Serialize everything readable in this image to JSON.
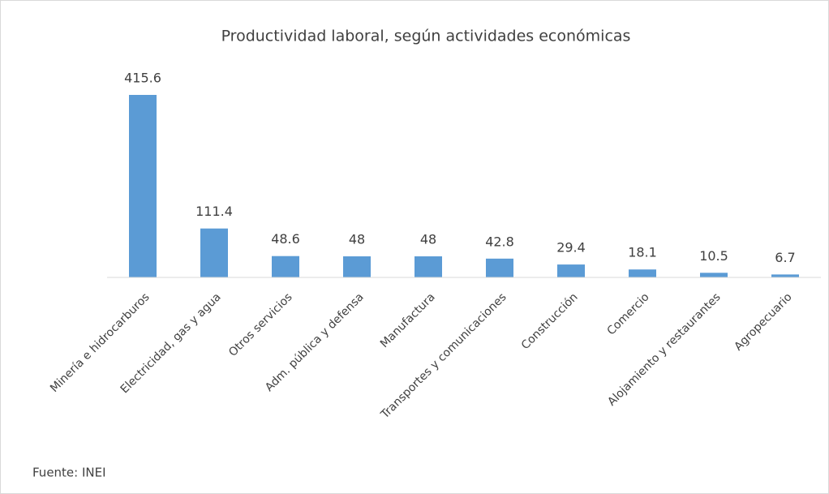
{
  "chart_data": {
    "type": "bar",
    "title": "Productividad laboral, según actividades económicas",
    "categories": [
      "Minería e hidrocarburos",
      "Electricidad, gas y agua",
      "Otros servicios",
      "Adm. pública y defensa",
      "Manufactura",
      "Transportes y comunicaciones",
      "Construcción",
      "Comercio",
      "Alojamiento y restaurantes",
      "Agropecuario"
    ],
    "values": [
      415.6,
      111.4,
      48.6,
      48,
      48,
      42.8,
      29.4,
      18.1,
      10.5,
      6.7
    ],
    "color": "#5b9bd5",
    "source": "Fuente: INEI"
  }
}
